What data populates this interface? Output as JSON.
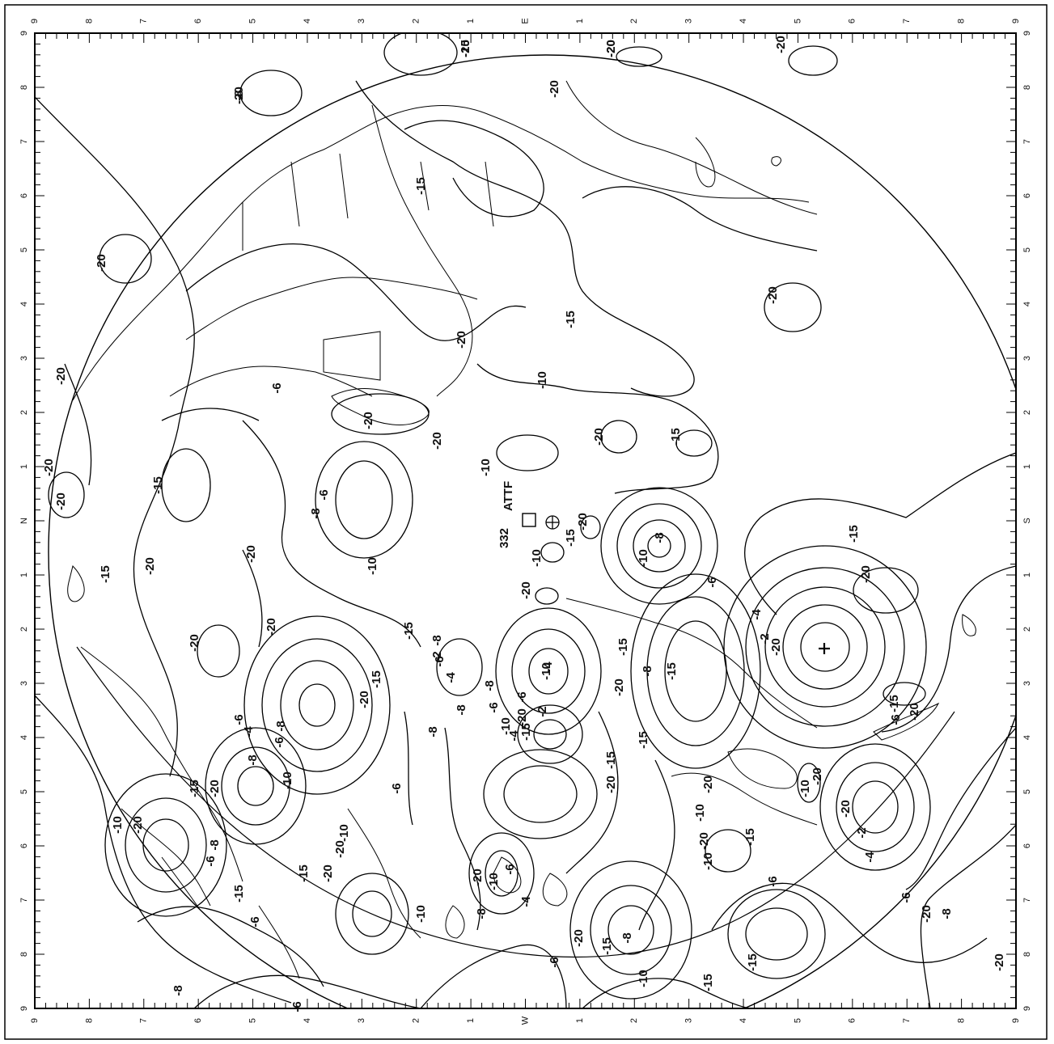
{
  "map": {
    "edge_ticks": {
      "left": [
        "9",
        "8",
        "7",
        "6",
        "5",
        "4",
        "3",
        "2",
        "1",
        "N",
        "1",
        "2",
        "3",
        "4",
        "5",
        "6",
        "7",
        "8",
        "9"
      ],
      "right": [
        "9",
        "8",
        "7",
        "6",
        "5",
        "4",
        "3",
        "2",
        "1",
        "S",
        "1",
        "2",
        "3",
        "4",
        "5",
        "6",
        "7",
        "8",
        "9"
      ],
      "top": [
        "9",
        "8",
        "7",
        "6",
        "5",
        "4",
        "3",
        "2",
        "1",
        "E",
        "1",
        "2",
        "3",
        "4",
        "5",
        "6",
        "7",
        "8",
        "9"
      ],
      "bottom": [
        "9",
        "8",
        "7",
        "6",
        "5",
        "4",
        "3",
        "2",
        "1",
        "W",
        "1",
        "2",
        "3",
        "4",
        "5",
        "6",
        "7",
        "8",
        "9"
      ]
    },
    "station_label": "ATTF",
    "station_code": "332",
    "contour_labels": [
      {
        "text": "-20"
      },
      {
        "text": "-20"
      },
      {
        "text": "-20"
      },
      {
        "text": "-20"
      },
      {
        "text": "-20"
      },
      {
        "text": "-20"
      },
      {
        "text": "-20"
      },
      {
        "text": "-15"
      },
      {
        "text": "-20"
      },
      {
        "text": "-15"
      },
      {
        "text": "-10"
      },
      {
        "text": "-6"
      },
      {
        "text": "-20"
      },
      {
        "text": "-20"
      },
      {
        "text": "-10"
      },
      {
        "text": "-8"
      },
      {
        "text": "-6"
      },
      {
        "text": "-15"
      },
      {
        "text": "-20"
      },
      {
        "text": "-15"
      },
      {
        "text": "-20"
      },
      {
        "text": "-20"
      },
      {
        "text": "-20"
      },
      {
        "text": "-10"
      },
      {
        "text": "-15"
      },
      {
        "text": "-20"
      },
      {
        "text": "-20"
      },
      {
        "text": "-20"
      },
      {
        "text": "-15"
      },
      {
        "text": "-10"
      },
      {
        "text": "-20"
      },
      {
        "text": "-8"
      },
      {
        "text": "-6"
      },
      {
        "text": "-4"
      },
      {
        "text": "-2"
      },
      {
        "text": "-15"
      },
      {
        "text": "-20"
      },
      {
        "text": "-20"
      },
      {
        "text": "-20"
      },
      {
        "text": "-15"
      },
      {
        "text": "-10"
      },
      {
        "text": "-8"
      },
      {
        "text": "-15"
      },
      {
        "text": "-20"
      },
      {
        "text": "-8"
      },
      {
        "text": "-6"
      },
      {
        "text": "-4"
      },
      {
        "text": "-2"
      },
      {
        "text": "-20"
      },
      {
        "text": "-15"
      },
      {
        "text": "-10"
      },
      {
        "text": "-8"
      },
      {
        "text": "-6"
      },
      {
        "text": "-4"
      },
      {
        "text": "-2"
      },
      {
        "text": "-6"
      },
      {
        "text": "-8"
      },
      {
        "text": "-10"
      },
      {
        "text": "-4"
      },
      {
        "text": "-15"
      },
      {
        "text": "-20"
      },
      {
        "text": "-15"
      },
      {
        "text": "-6"
      },
      {
        "text": "-20"
      },
      {
        "text": "-2"
      },
      {
        "text": "-4"
      },
      {
        "text": "-10"
      },
      {
        "text": "-20"
      },
      {
        "text": "-15"
      },
      {
        "text": "-20"
      },
      {
        "text": "-10"
      },
      {
        "text": "-20"
      },
      {
        "text": "-10"
      },
      {
        "text": "-15"
      },
      {
        "text": "-20"
      },
      {
        "text": "-15"
      },
      {
        "text": "-8"
      },
      {
        "text": "-6"
      },
      {
        "text": "-20"
      },
      {
        "text": "-15"
      },
      {
        "text": "-10"
      },
      {
        "text": "-8"
      },
      {
        "text": "-6"
      },
      {
        "text": "-4"
      },
      {
        "text": "-6"
      },
      {
        "text": "-8"
      },
      {
        "text": "-15"
      },
      {
        "text": "-20"
      },
      {
        "text": "-10"
      },
      {
        "text": "-20"
      },
      {
        "text": "-8"
      },
      {
        "text": "-6"
      },
      {
        "text": "-15"
      },
      {
        "text": "-20"
      },
      {
        "text": "-20"
      },
      {
        "text": "-10"
      },
      {
        "text": "-15"
      },
      {
        "text": "-6"
      },
      {
        "text": "-8"
      },
      {
        "text": "-6"
      },
      {
        "text": "-10"
      },
      {
        "text": "-20"
      },
      {
        "text": "-6"
      },
      {
        "text": "-10"
      },
      {
        "text": "-8"
      },
      {
        "text": "-4"
      },
      {
        "text": "-6"
      },
      {
        "text": "-8"
      },
      {
        "text": "-15"
      },
      {
        "text": "-20"
      },
      {
        "text": "-10"
      },
      {
        "text": "-15"
      },
      {
        "text": "-20"
      },
      {
        "text": "-6"
      },
      {
        "text": "-8"
      },
      {
        "text": "-20"
      },
      {
        "text": "-15"
      },
      {
        "text": "-20"
      },
      {
        "text": "-6"
      },
      {
        "text": "-8"
      },
      {
        "text": "-15"
      },
      {
        "text": "-20"
      }
    ]
  }
}
